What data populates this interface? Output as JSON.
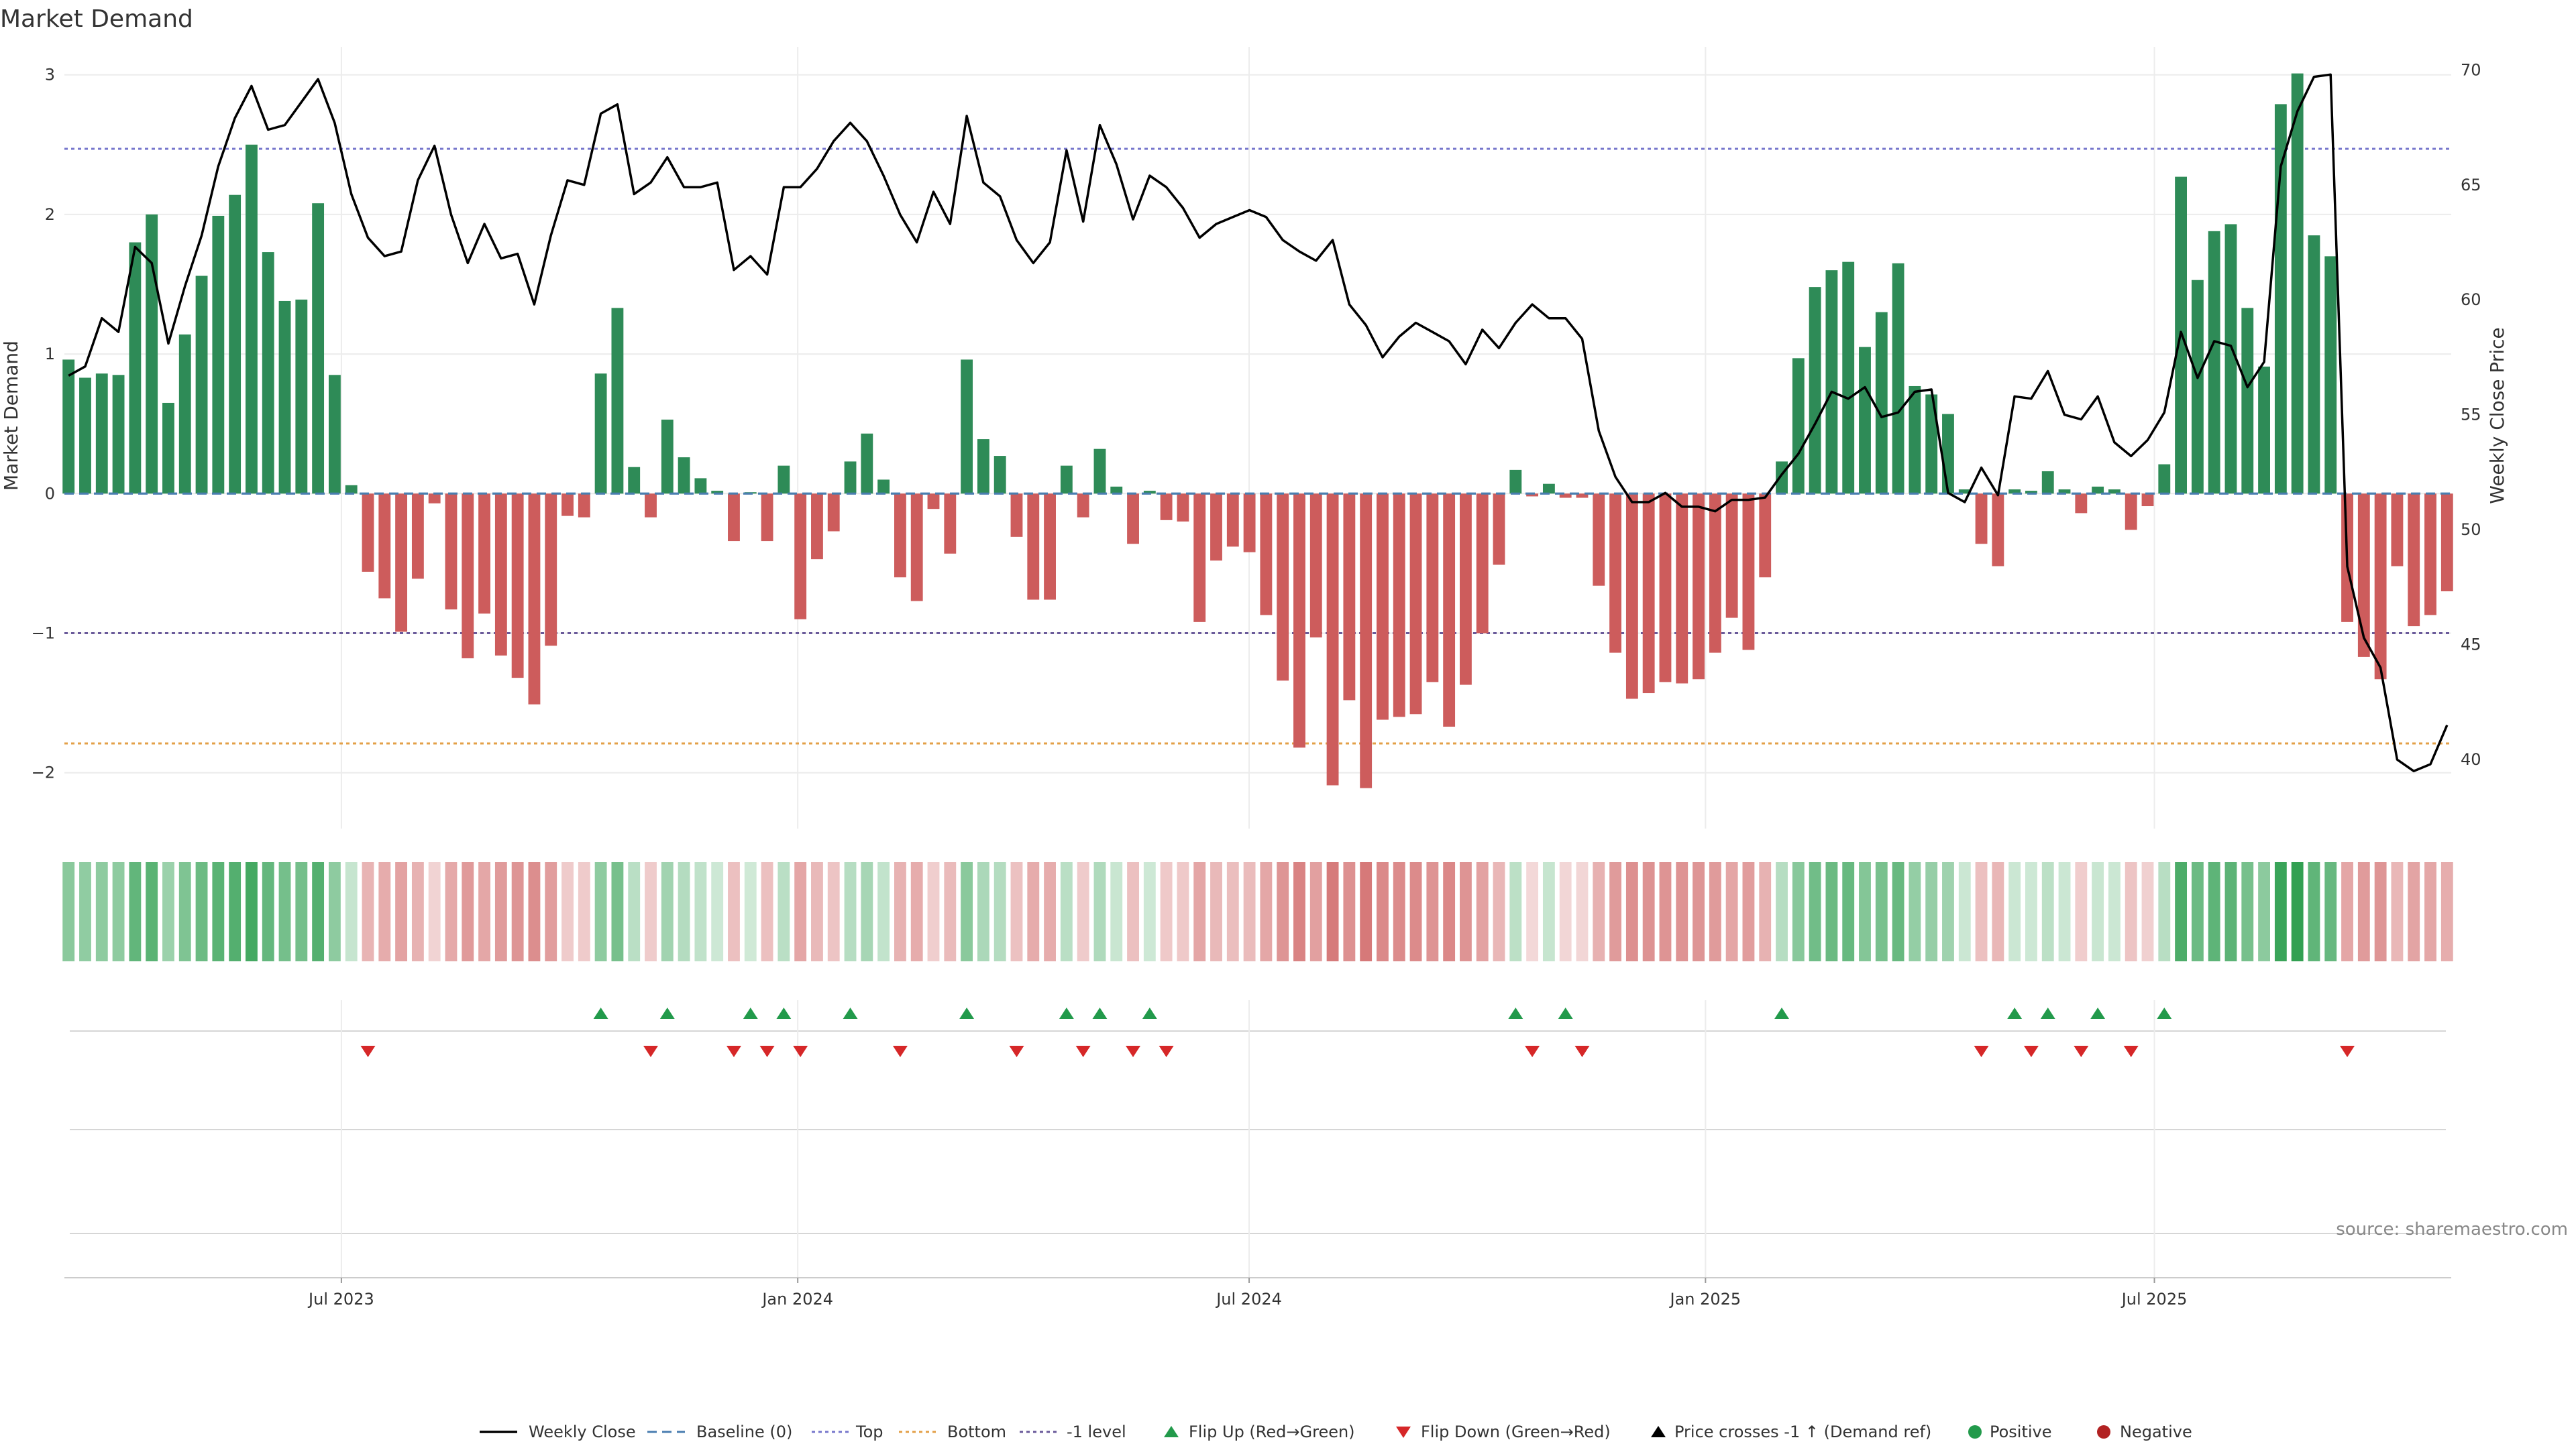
{
  "chart_data": {
    "type": "bar",
    "title": "Market Demand",
    "ylabel": "Market Demand",
    "y2label": "Weekly Close Price",
    "ylim": [
      -2.4,
      3.2
    ],
    "y2lim": [
      37,
      71
    ],
    "yticks": [
      3,
      2,
      1,
      0,
      -1,
      -2
    ],
    "y2ticks": [
      70,
      65,
      60,
      55,
      50,
      45,
      40
    ],
    "x_start": "2023-03-13",
    "x_end": "2025-10-27",
    "x_ticks": [
      {
        "date": "2023-07-01",
        "label": "Jul 2023"
      },
      {
        "date": "2024-01-01",
        "label": "Jan 2024"
      },
      {
        "date": "2024-07-01",
        "label": "Jul 2024"
      },
      {
        "date": "2025-01-01",
        "label": "Jan 2025"
      },
      {
        "date": "2025-07-01",
        "label": "Jul 2025"
      }
    ],
    "reference_lines": [
      {
        "name": "Top",
        "value": 2.47,
        "color": "#7777cc"
      },
      {
        "name": "Bottom",
        "value": -1.79,
        "color": "#e3a048"
      },
      {
        "name": "-1 level",
        "value": -1.0,
        "color": "#6a5a9a"
      },
      {
        "name": "Baseline (0)",
        "value": 0,
        "color": "#4a7eb0"
      }
    ],
    "series": [
      {
        "name": "Market Demand",
        "values": [
          0.96,
          0.83,
          0.86,
          0.85,
          1.8,
          2.0,
          0.65,
          1.14,
          1.56,
          1.99,
          2.14,
          2.5,
          1.73,
          1.38,
          1.39,
          2.08,
          0.85,
          0.06,
          -0.56,
          -0.75,
          -0.99,
          -0.61,
          -0.07,
          -0.83,
          -1.18,
          -0.86,
          -1.16,
          -1.32,
          -1.51,
          -1.09,
          -0.16,
          -0.17,
          0.86,
          1.33,
          0.19,
          -0.17,
          0.53,
          0.26,
          0.11,
          0.02,
          -0.34,
          0.01,
          -0.34,
          0.2,
          -0.9,
          -0.47,
          -0.27,
          0.23,
          0.43,
          0.1,
          -0.6,
          -0.77,
          -0.11,
          -0.43,
          0.96,
          0.39,
          0.27,
          -0.31,
          -0.76,
          -0.76,
          0.2,
          -0.17,
          0.32,
          0.05,
          -0.36,
          0.02,
          -0.19,
          -0.2,
          -0.92,
          -0.48,
          -0.38,
          -0.42,
          -0.87,
          -1.34,
          -1.82,
          -1.03,
          -2.09,
          -1.48,
          -2.11,
          -1.62,
          -1.6,
          -1.58,
          -1.35,
          -1.67,
          -1.37,
          -1.0,
          -0.51,
          0.17,
          -0.02,
          0.07,
          -0.03,
          -0.03,
          -0.66,
          -1.14,
          -1.47,
          -1.43,
          -1.35,
          -1.36,
          -1.33,
          -1.14,
          -0.89,
          -1.12,
          -0.6,
          0.23,
          0.97,
          1.48,
          1.6,
          1.66,
          1.05,
          1.3,
          1.65,
          0.77,
          0.71,
          0.57,
          0.03,
          -0.36,
          -0.52,
          0.03,
          0.02,
          0.16,
          0.03,
          -0.14,
          0.05,
          0.03,
          -0.26,
          -0.09,
          0.21,
          2.27,
          1.53,
          1.88,
          1.93,
          1.33,
          0.91,
          2.79,
          3.01,
          1.85,
          1.7,
          -0.92,
          -1.17,
          -1.33,
          -0.52,
          -0.95,
          -0.87,
          -0.7
        ]
      },
      {
        "name": "Weekly Close",
        "values": [
          56.7,
          57.1,
          59.2,
          58.6,
          62.3,
          61.6,
          58.1,
          60.6,
          62.8,
          65.8,
          67.9,
          69.3,
          67.4,
          67.6,
          68.6,
          69.6,
          67.7,
          64.6,
          62.7,
          61.9,
          62.1,
          65.2,
          66.7,
          63.7,
          61.6,
          63.3,
          61.8,
          62.0,
          59.8,
          62.8,
          65.2,
          65.0,
          68.1,
          68.5,
          64.6,
          65.1,
          66.2,
          64.9,
          64.9,
          65.1,
          61.3,
          61.9,
          61.1,
          64.9,
          64.9,
          65.7,
          66.9,
          67.7,
          66.9,
          65.4,
          63.7,
          62.5,
          64.7,
          63.3,
          68.0,
          65.1,
          64.5,
          62.6,
          61.6,
          62.5,
          66.5,
          63.4,
          67.6,
          65.9,
          63.5,
          65.4,
          64.9,
          64.0,
          62.7,
          63.3,
          63.6,
          63.9,
          63.6,
          62.6,
          62.1,
          61.7,
          62.6,
          59.8,
          58.9,
          57.5,
          58.4,
          59.0,
          58.6,
          58.2,
          57.2,
          58.7,
          57.9,
          59.0,
          59.8,
          59.2,
          59.2,
          58.3,
          54.3,
          52.3,
          51.2,
          51.2,
          51.6,
          51.0,
          51.0,
          50.8,
          51.3,
          51.3,
          51.4,
          52.4,
          53.3,
          54.6,
          56.0,
          55.7,
          56.2,
          54.9,
          55.1,
          56.0,
          56.1,
          51.6,
          51.2,
          52.7,
          51.5,
          55.8,
          55.7,
          56.9,
          55.0,
          54.8,
          55.8,
          53.8,
          53.2,
          53.9,
          55.1,
          58.6,
          56.6,
          58.2,
          58.0,
          56.2,
          57.3,
          65.8,
          68.2,
          69.7,
          69.8,
          48.4,
          45.3,
          44.0,
          40.0,
          39.5,
          39.8,
          41.5
        ]
      }
    ],
    "flip_up_weeks": [
      32,
      36,
      41,
      43,
      47,
      54,
      60,
      62,
      65,
      87,
      90,
      103,
      117,
      119,
      122,
      126
    ],
    "flip_down_weeks": [
      18,
      35,
      40,
      42,
      44,
      50,
      57,
      61,
      64,
      66,
      88,
      91,
      115,
      118,
      121,
      124,
      137
    ],
    "legend": [
      {
        "label": "Weekly Close",
        "kind": "line",
        "color": "#000000"
      },
      {
        "label": "Baseline (0)",
        "kind": "dash",
        "color": "#4a7eb0"
      },
      {
        "label": "Top",
        "kind": "dot",
        "color": "#7777cc"
      },
      {
        "label": "Bottom",
        "kind": "dot",
        "color": "#e3a048"
      },
      {
        "label": "-1 level",
        "kind": "dot",
        "color": "#6a5a9a"
      },
      {
        "label": "Flip Up (Red→Green)",
        "kind": "tri-up",
        "color": "#229a4b"
      },
      {
        "label": "Flip Down (Green→Red)",
        "kind": "tri-down",
        "color": "#d62728"
      },
      {
        "label": "Price crosses -1 ↑ (Demand ref)",
        "kind": "tri-up",
        "color": "#000000"
      },
      {
        "label": "Positive",
        "kind": "dot-marker",
        "color": "#229a4b"
      },
      {
        "label": "Negative",
        "kind": "dot-marker",
        "color": "#b22222"
      }
    ],
    "colors": {
      "positive_bar": "#2e8b57",
      "negative_bar": "#cd5c5c",
      "heat_positive": "#2e9e4f",
      "heat_negative": "#cd5c5c",
      "price_line": "#000000",
      "flip_up": "#229a4b",
      "flip_down": "#d62728"
    },
    "source": "source: sharemaestro.com"
  }
}
